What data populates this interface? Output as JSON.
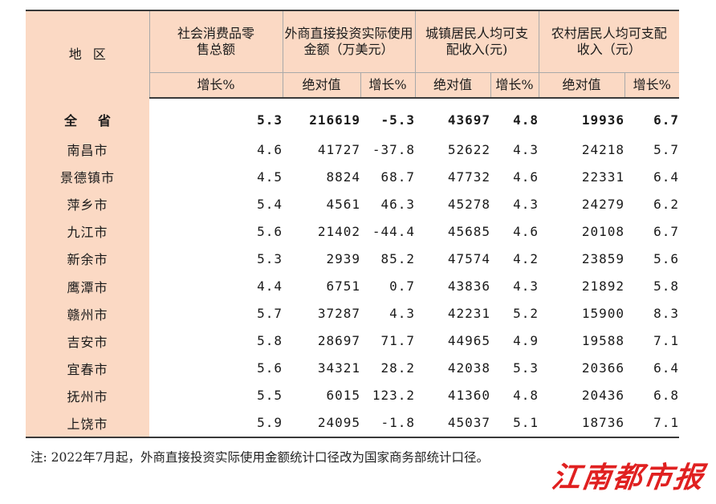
{
  "headers": {
    "region": "地区",
    "retail": "社会消费品零售总额",
    "fdi": "外商直接投资实际使用金额（万美元）",
    "urban": "城镇居民人均可支配收入(元)",
    "rural": "农村居民人均可支配收入（元）",
    "growth": "增长%",
    "absolute": "绝对值"
  },
  "rows": [
    {
      "region": "全省",
      "retail_growth": "5.3",
      "fdi_abs": "216619",
      "fdi_growth": "-5.3",
      "urban_abs": "43697",
      "urban_growth": "4.8",
      "rural_abs": "19936",
      "rural_growth": "6.7"
    },
    {
      "region": "南昌市",
      "retail_growth": "4.6",
      "fdi_abs": "41727",
      "fdi_growth": "-37.8",
      "urban_abs": "52622",
      "urban_growth": "4.3",
      "rural_abs": "24218",
      "rural_growth": "5.7"
    },
    {
      "region": "景德镇市",
      "retail_growth": "4.5",
      "fdi_abs": "8824",
      "fdi_growth": "68.7",
      "urban_abs": "47732",
      "urban_growth": "4.6",
      "rural_abs": "22331",
      "rural_growth": "6.4"
    },
    {
      "region": "萍乡市",
      "retail_growth": "5.4",
      "fdi_abs": "4561",
      "fdi_growth": "46.3",
      "urban_abs": "45278",
      "urban_growth": "4.3",
      "rural_abs": "24279",
      "rural_growth": "6.2"
    },
    {
      "region": "九江市",
      "retail_growth": "5.6",
      "fdi_abs": "21402",
      "fdi_growth": "-44.4",
      "urban_abs": "45685",
      "urban_growth": "4.6",
      "rural_abs": "20108",
      "rural_growth": "6.7"
    },
    {
      "region": "新余市",
      "retail_growth": "5.3",
      "fdi_abs": "2939",
      "fdi_growth": "85.2",
      "urban_abs": "47574",
      "urban_growth": "4.2",
      "rural_abs": "23859",
      "rural_growth": "5.6"
    },
    {
      "region": "鹰潭市",
      "retail_growth": "4.4",
      "fdi_abs": "6751",
      "fdi_growth": "0.7",
      "urban_abs": "43836",
      "urban_growth": "4.3",
      "rural_abs": "21892",
      "rural_growth": "5.8"
    },
    {
      "region": "赣州市",
      "retail_growth": "5.7",
      "fdi_abs": "37287",
      "fdi_growth": "4.3",
      "urban_abs": "42231",
      "urban_growth": "5.2",
      "rural_abs": "15900",
      "rural_growth": "8.3"
    },
    {
      "region": "吉安市",
      "retail_growth": "5.8",
      "fdi_abs": "28697",
      "fdi_growth": "71.7",
      "urban_abs": "44965",
      "urban_growth": "4.9",
      "rural_abs": "19588",
      "rural_growth": "7.1"
    },
    {
      "region": "宜春市",
      "retail_growth": "5.6",
      "fdi_abs": "34321",
      "fdi_growth": "28.2",
      "urban_abs": "42038",
      "urban_growth": "5.3",
      "rural_abs": "20366",
      "rural_growth": "6.4"
    },
    {
      "region": "抚州市",
      "retail_growth": "5.5",
      "fdi_abs": "6015",
      "fdi_growth": "123.2",
      "urban_abs": "41360",
      "urban_growth": "4.8",
      "rural_abs": "20436",
      "rural_growth": "6.8"
    },
    {
      "region": "上饶市",
      "retail_growth": "5.9",
      "fdi_abs": "24095",
      "fdi_growth": "-1.8",
      "urban_abs": "45037",
      "urban_growth": "5.1",
      "rural_abs": "18736",
      "rural_growth": "7.1"
    }
  ],
  "note": "注: 2022年7月起，外商直接投资实际使用金额统计口径改为国家商务部统计口径。",
  "watermark": "江南都市报",
  "colors": {
    "header_bg": "#fbd9c4",
    "watermark": "#e02020"
  }
}
